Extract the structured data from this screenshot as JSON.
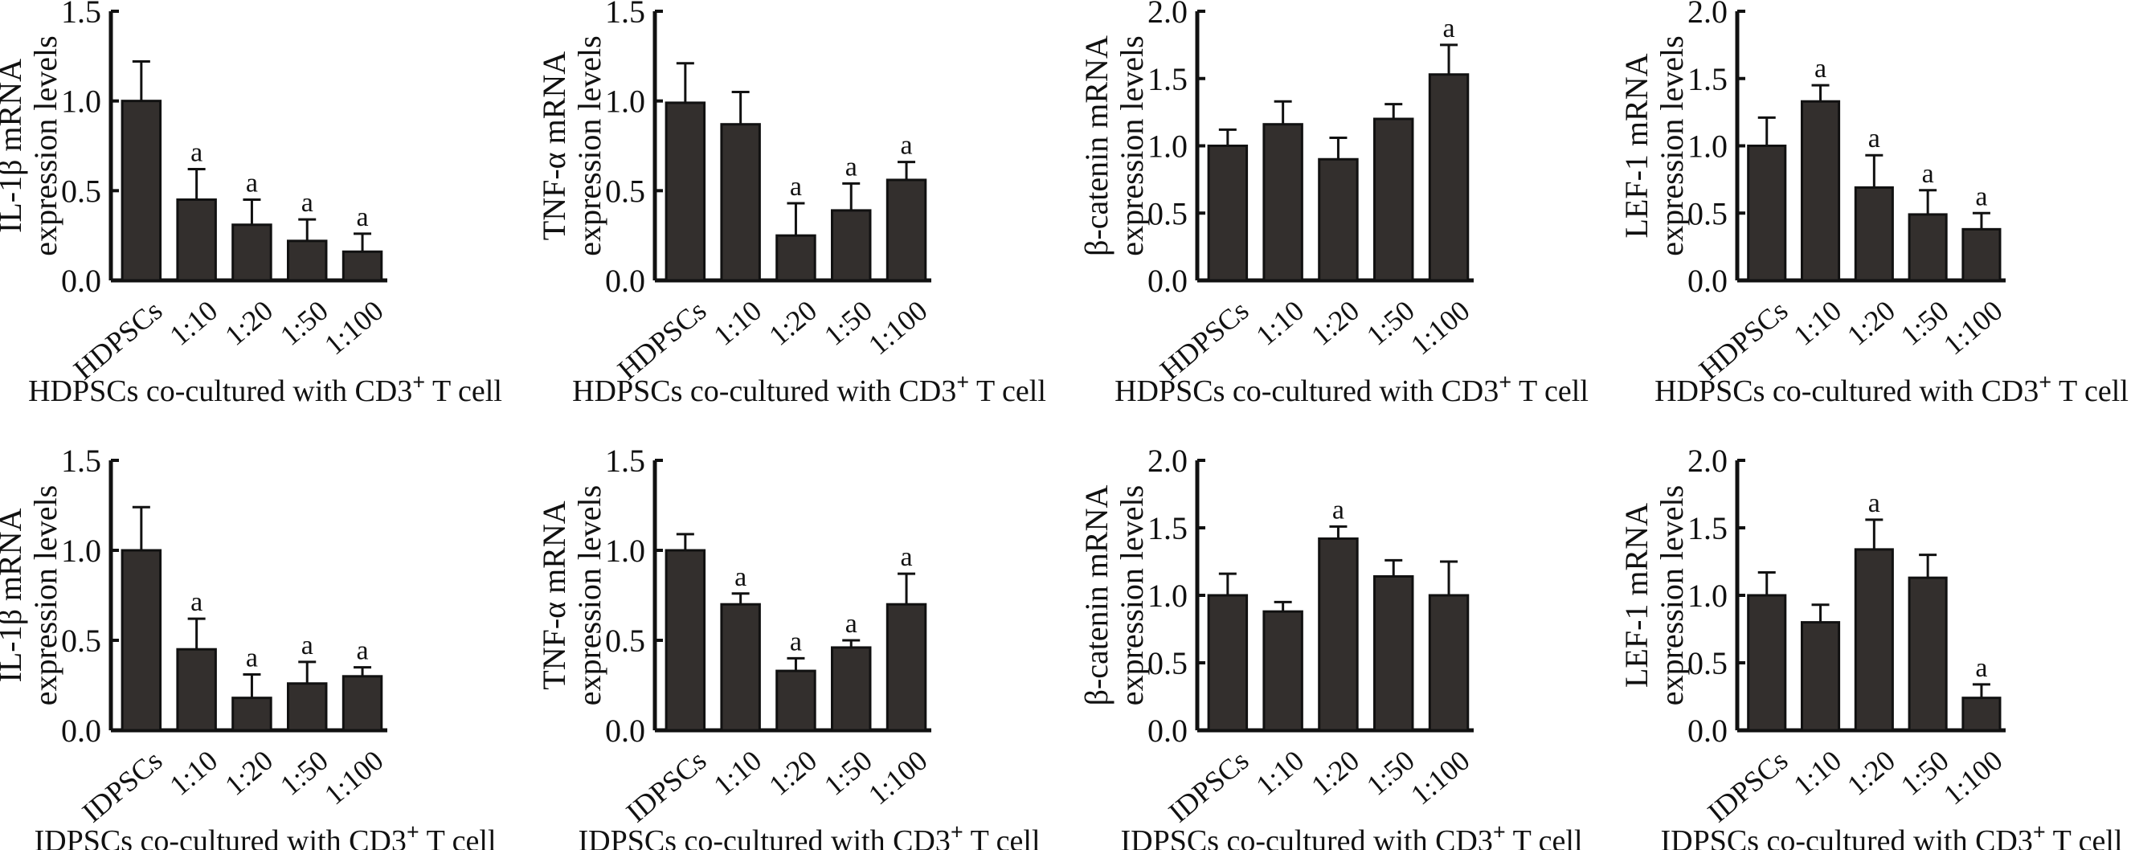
{
  "chart_data": [
    {
      "type": "bar",
      "ylabel_line1": "IL-1β  mRNA",
      "ylabel_line2": "expression levels",
      "xlabel": "HDPSCs co-cultured with CD3",
      "xlabel_sup": "+",
      "xlabel_tail": " T cell",
      "categories": [
        "HDPSCs",
        "1:10",
        "1:20",
        "1:50",
        "1:100"
      ],
      "values": [
        1.0,
        0.45,
        0.31,
        0.22,
        0.16
      ],
      "error_upper": [
        1.22,
        0.62,
        0.45,
        0.34,
        0.26
      ],
      "significance": [
        "",
        "a",
        "a",
        "a",
        "a"
      ],
      "ylim": [
        0,
        1.5
      ],
      "yticks": [
        "0.0",
        "0.5",
        "1.0",
        "1.5"
      ]
    },
    {
      "type": "bar",
      "ylabel_line1": "TNF-α  mRNA",
      "ylabel_line2": "expression levels",
      "xlabel": "HDPSCs co-cultured with CD3",
      "xlabel_sup": "+",
      "xlabel_tail": " T cell",
      "categories": [
        "HDPSCs",
        "1:10",
        "1:20",
        "1:50",
        "1:100"
      ],
      "values": [
        0.99,
        0.87,
        0.25,
        0.39,
        0.56
      ],
      "error_upper": [
        1.21,
        1.05,
        0.43,
        0.54,
        0.66
      ],
      "significance": [
        "",
        "",
        "a",
        "a",
        "a"
      ],
      "ylim": [
        0,
        1.5
      ],
      "yticks": [
        "0.0",
        "0.5",
        "1.0",
        "1.5"
      ]
    },
    {
      "type": "bar",
      "ylabel_line1": "β-catenin mRNA",
      "ylabel_line2": "expression levels",
      "xlabel": "HDPSCs co-cultured with CD3",
      "xlabel_sup": "+",
      "xlabel_tail": " T cell",
      "categories": [
        "HDPSCs",
        "1:10",
        "1:20",
        "1:50",
        "1:100"
      ],
      "values": [
        1.0,
        1.16,
        0.9,
        1.2,
        1.53
      ],
      "error_upper": [
        1.12,
        1.33,
        1.06,
        1.31,
        1.75
      ],
      "significance": [
        "",
        "",
        "",
        "",
        "a"
      ],
      "ylim": [
        0,
        2.0
      ],
      "yticks": [
        "0.0",
        "0.5",
        "1.0",
        "1.5",
        "2.0"
      ]
    },
    {
      "type": "bar",
      "ylabel_line1": "LEF-1 mRNA",
      "ylabel_line2": "expression levels",
      "xlabel": "HDPSCs co-cultured with CD3",
      "xlabel_sup": "+",
      "xlabel_tail": " T cell",
      "categories": [
        "HDPSCs",
        "1:10",
        "1:20",
        "1:50",
        "1:100"
      ],
      "values": [
        1.0,
        1.33,
        0.69,
        0.49,
        0.38
      ],
      "error_upper": [
        1.21,
        1.45,
        0.93,
        0.67,
        0.5
      ],
      "significance": [
        "",
        "a",
        "a",
        "a",
        "a"
      ],
      "ylim": [
        0,
        2.0
      ],
      "yticks": [
        "0.0",
        "0.5",
        "1.0",
        "1.5",
        "2.0"
      ]
    },
    {
      "type": "bar",
      "ylabel_line1": "IL-1β  mRNA",
      "ylabel_line2": "expression levels",
      "xlabel": "IDPSCs co-cultured with CD3",
      "xlabel_sup": "+",
      "xlabel_tail": " T cell",
      "categories": [
        "IDPSCs",
        "1:10",
        "1:20",
        "1:50",
        "1:100"
      ],
      "values": [
        1.0,
        0.45,
        0.18,
        0.26,
        0.3
      ],
      "error_upper": [
        1.24,
        0.62,
        0.31,
        0.38,
        0.35
      ],
      "significance": [
        "",
        "a",
        "a",
        "a",
        "a"
      ],
      "ylim": [
        0,
        1.5
      ],
      "yticks": [
        "0.0",
        "0.5",
        "1.0",
        "1.5"
      ]
    },
    {
      "type": "bar",
      "ylabel_line1": "TNF-α  mRNA",
      "ylabel_line2": "expression levels",
      "xlabel": "IDPSCs co-cultured with CD3",
      "xlabel_sup": "+",
      "xlabel_tail": " T cell",
      "categories": [
        "IDPSCs",
        "1:10",
        "1:20",
        "1:50",
        "1:100"
      ],
      "values": [
        1.0,
        0.7,
        0.33,
        0.46,
        0.7
      ],
      "error_upper": [
        1.09,
        0.76,
        0.4,
        0.5,
        0.87
      ],
      "significance": [
        "",
        "a",
        "a",
        "a",
        "a"
      ],
      "ylim": [
        0,
        1.5
      ],
      "yticks": [
        "0.0",
        "0.5",
        "1.0",
        "1.5"
      ]
    },
    {
      "type": "bar",
      "ylabel_line1": "β-catenin mRNA",
      "ylabel_line2": "expression levels",
      "xlabel": "IDPSCs co-cultured with CD3",
      "xlabel_sup": "+",
      "xlabel_tail": " T cell",
      "categories": [
        "IDPSCs",
        "1:10",
        "1:20",
        "1:50",
        "1:100"
      ],
      "values": [
        1.0,
        0.88,
        1.42,
        1.14,
        1.0
      ],
      "error_upper": [
        1.16,
        0.95,
        1.51,
        1.26,
        1.25
      ],
      "significance": [
        "",
        "",
        "a",
        "",
        ""
      ],
      "ylim": [
        0,
        2.0
      ],
      "yticks": [
        "0.0",
        "0.5",
        "1.0",
        "1.5",
        "2.0"
      ]
    },
    {
      "type": "bar",
      "ylabel_line1": "LEF-1 mRNA",
      "ylabel_line2": "expression levels",
      "xlabel": "IDPSCs co-cultured with CD3",
      "xlabel_sup": "+",
      "xlabel_tail": " T cell",
      "categories": [
        "IDPSCs",
        "1:10",
        "1:20",
        "1:50",
        "1:100"
      ],
      "values": [
        1.0,
        0.8,
        1.34,
        1.13,
        0.24
      ],
      "error_upper": [
        1.17,
        0.93,
        1.56,
        1.3,
        0.34
      ],
      "significance": [
        "",
        "",
        "a",
        "",
        "a"
      ],
      "ylim": [
        0,
        2.0
      ],
      "yticks": [
        "0.0",
        "0.5",
        "1.0",
        "1.5",
        "2.0"
      ]
    }
  ],
  "colors": {
    "bar": "#332f2d",
    "axis": "#111111"
  }
}
